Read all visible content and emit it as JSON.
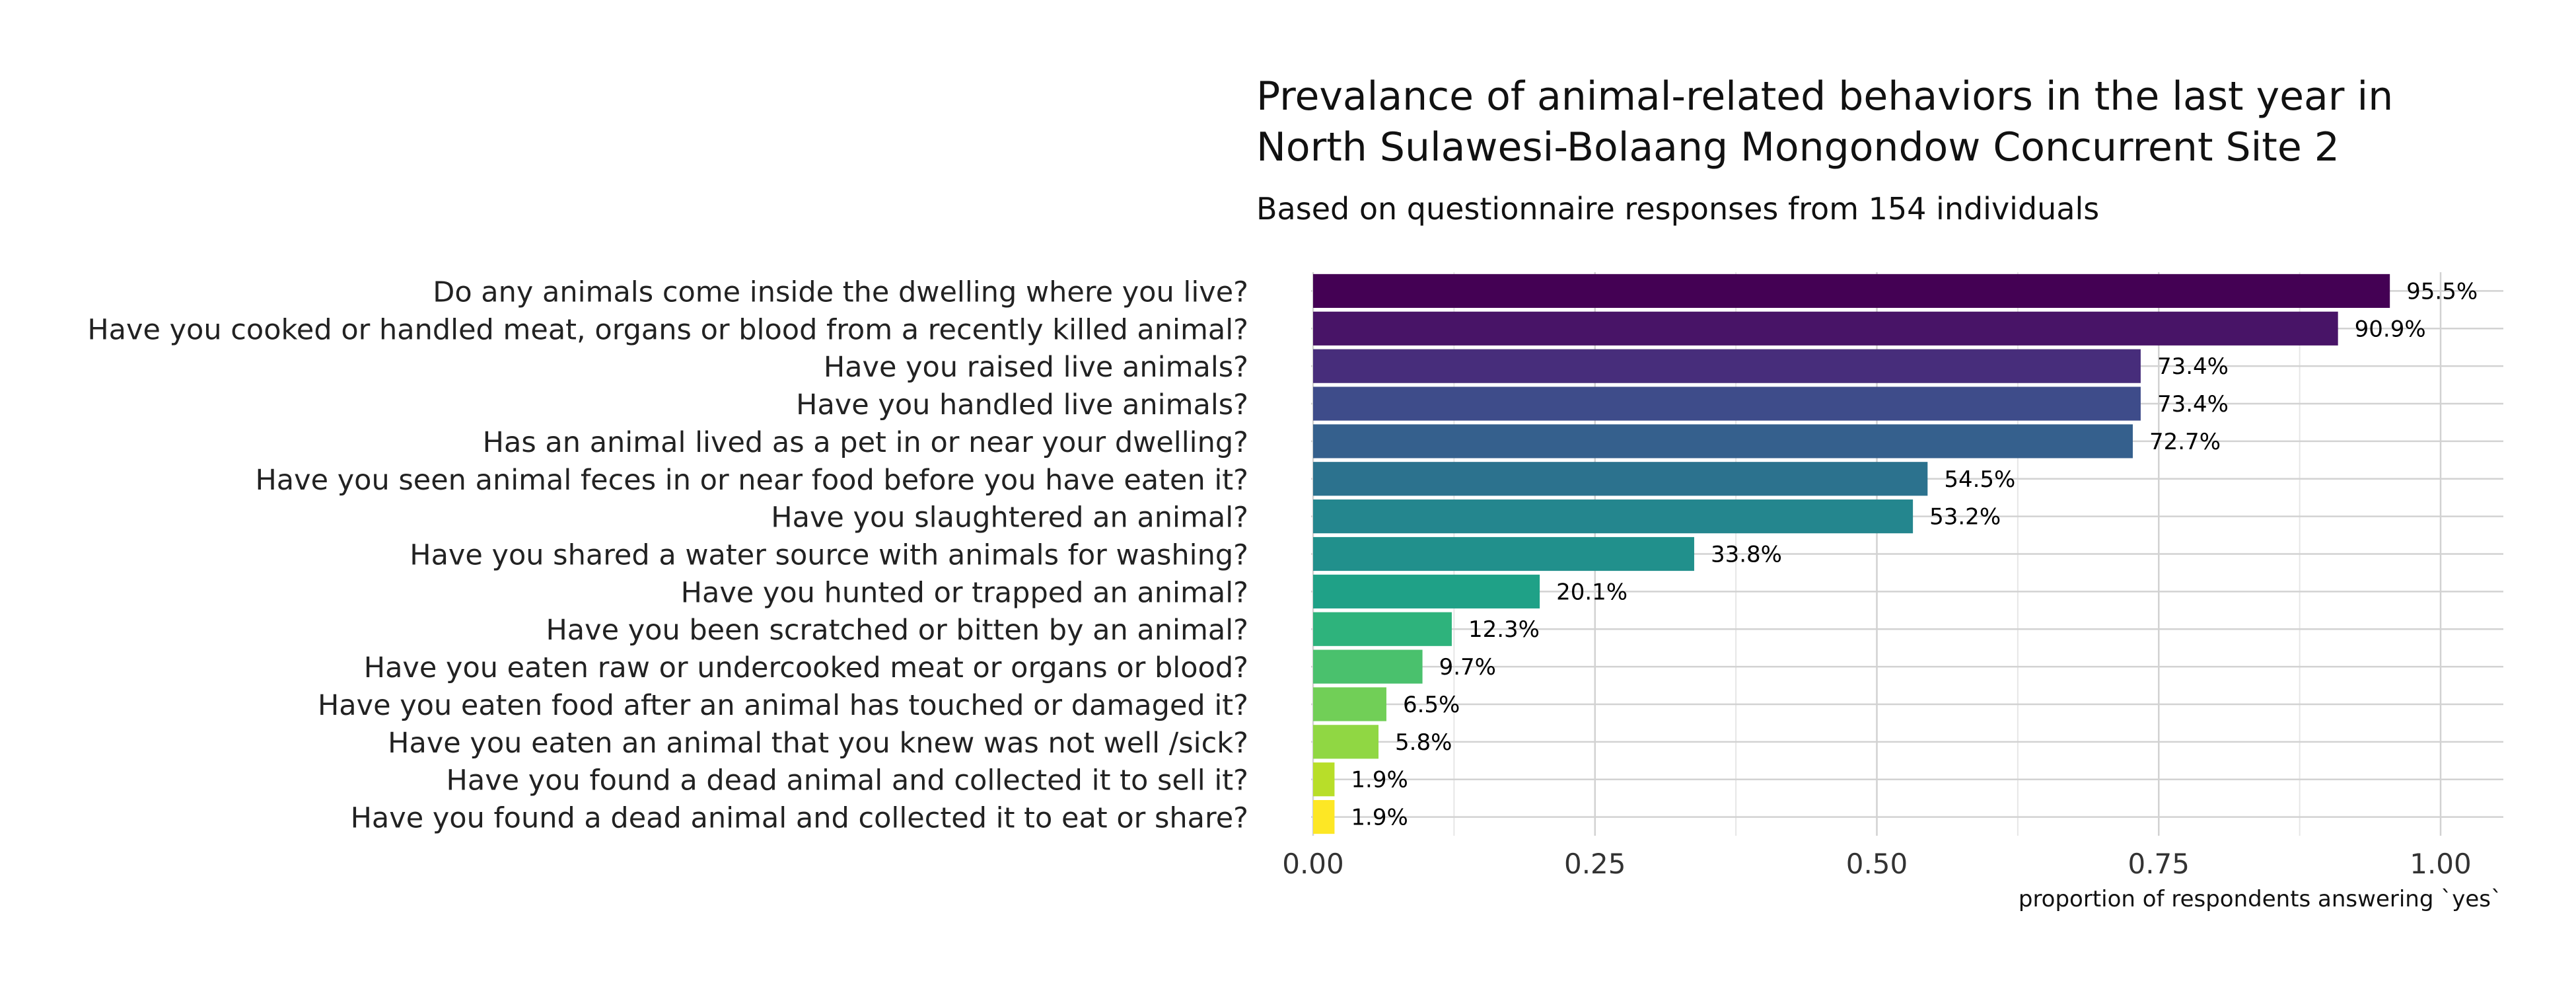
{
  "title_line1": "Prevalance of animal-related behaviors in the last year in",
  "title_line2": "North Sulawesi-Bolaang Mongondow Concurrent Site 2",
  "subtitle": "Based on questionnaire responses from 154 individuals",
  "chart_data": {
    "type": "bar",
    "orientation": "horizontal",
    "title": "Prevalance of animal-related behaviors in the last year in North Sulawesi-Bolaang Mongondow Concurrent Site 2",
    "subtitle": "Based on questionnaire responses from 154 individuals",
    "xlabel": "proportion of respondents answering `yes`",
    "ylabel": "",
    "xlim": [
      0,
      1.05
    ],
    "x_ticks": [
      0.0,
      0.25,
      0.5,
      0.75,
      1.0
    ],
    "x_tick_labels": [
      "0.00",
      "0.25",
      "0.50",
      "0.75",
      "1.00"
    ],
    "grid": true,
    "legend": "none",
    "categories": [
      "Do any animals come inside the dwelling where you live?",
      "Have you cooked or handled meat, organs or blood from a recently killed animal?",
      "Have you raised live animals?",
      "Have you handled live animals?",
      "Has an animal lived as a pet in or near your dwelling?",
      "Have you seen animal feces in or near food before you have eaten it?",
      "Have you slaughtered an animal?",
      "Have you shared a water source with animals for washing?",
      "Have you hunted or trapped an animal?",
      "Have you been scratched or bitten by an animal?",
      "Have you eaten raw or undercooked meat or organs or blood?",
      "Have you eaten food after an animal has touched or damaged it?",
      "Have you eaten an animal that you knew was not well /sick?",
      "Have you found a dead animal and collected it to sell it?",
      "Have you found a dead animal and collected it to eat or share?"
    ],
    "values": [
      0.955,
      0.909,
      0.734,
      0.734,
      0.727,
      0.545,
      0.532,
      0.338,
      0.201,
      0.123,
      0.097,
      0.065,
      0.058,
      0.019,
      0.019
    ],
    "data_labels": [
      "95.5%",
      "90.9%",
      "73.4%",
      "73.4%",
      "72.7%",
      "54.5%",
      "53.2%",
      "33.8%",
      "20.1%",
      "12.3%",
      "9.7%",
      "6.5%",
      "5.8%",
      "1.9%",
      "1.9%"
    ],
    "colors": [
      "#440154",
      "#481467",
      "#472D7B",
      "#3E4C8A",
      "#35608D",
      "#2C728E",
      "#24868E",
      "#21908C",
      "#1FA187",
      "#2EB37C",
      "#4AC16D",
      "#71CF57",
      "#90D743",
      "#B8DE29",
      "#FDE725"
    ]
  }
}
